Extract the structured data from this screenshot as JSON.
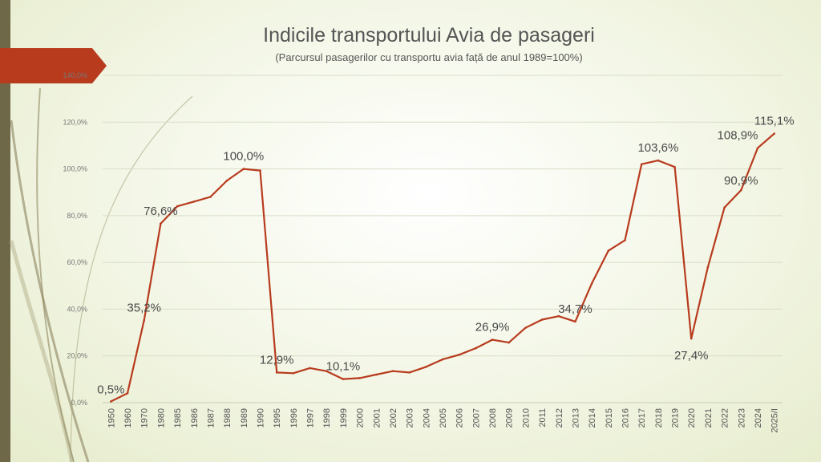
{
  "slide": {
    "title": "Indicile transportului Avia de pasageri",
    "subtitle": "(Parcursul pasagerilor cu transportu avia față de anul 1989=100%)",
    "accent_color": "#b83b1e",
    "bar_color": "#6e6849"
  },
  "chart_data": {
    "type": "line",
    "title": "Indicile transportului Avia de pasageri",
    "subtitle": "(Parcursul pasagerilor cu transportu avia față de anul 1989=100%)",
    "xlabel": "",
    "ylabel": "",
    "ylim": [
      0,
      140
    ],
    "y_tick_values": [
      0,
      20,
      40,
      60,
      80,
      100,
      120,
      140
    ],
    "y_tick_labels": [
      "0,0%",
      "20,0%",
      "40,0%",
      "60,0%",
      "80,0%",
      "100,0%",
      "120,0%",
      "140,0%"
    ],
    "grid": true,
    "legend": "none",
    "line_color": "#b83b1e",
    "categories": [
      "1950",
      "1960",
      "1970",
      "1980",
      "1985",
      "1986",
      "1987",
      "1988",
      "1989",
      "1990",
      "1995",
      "1996",
      "1997",
      "1998",
      "1999",
      "2000",
      "2001",
      "2002",
      "2003",
      "2004",
      "2005",
      "2006",
      "2007",
      "2008",
      "2009",
      "2010",
      "2011",
      "2012",
      "2013",
      "2014",
      "2015",
      "2016",
      "2017",
      "2018",
      "2019",
      "2020",
      "2021",
      "2022",
      "2023",
      "2024",
      "2025/I"
    ],
    "values": [
      0.5,
      4,
      35.2,
      76.6,
      84,
      86,
      88,
      95,
      100,
      99.3,
      12.9,
      12.6,
      14.8,
      13.5,
      10.1,
      10.5,
      12,
      13.5,
      12.9,
      15.3,
      18.5,
      20.5,
      23.3,
      26.9,
      25.7,
      32,
      35.5,
      37,
      34.7,
      51,
      65,
      69.5,
      102,
      103.6,
      100.8,
      27.4,
      58,
      83.5,
      90.9,
      108.9,
      115.1
    ],
    "data_labels": [
      {
        "index": 0,
        "text": "0,5%"
      },
      {
        "index": 2,
        "text": "35,2%"
      },
      {
        "index": 3,
        "text": "76,6%"
      },
      {
        "index": 8,
        "text": "100,0%"
      },
      {
        "index": 10,
        "text": "12,9%"
      },
      {
        "index": 14,
        "text": "10,1%"
      },
      {
        "index": 23,
        "text": "26,9%"
      },
      {
        "index": 28,
        "text": "34,7%"
      },
      {
        "index": 33,
        "text": "103,6%"
      },
      {
        "index": 35,
        "text": "27,4%"
      },
      {
        "index": 38,
        "text": "90,9%"
      },
      {
        "index": 39,
        "text": "108,9%"
      },
      {
        "index": 40,
        "text": "115,1%"
      }
    ]
  }
}
